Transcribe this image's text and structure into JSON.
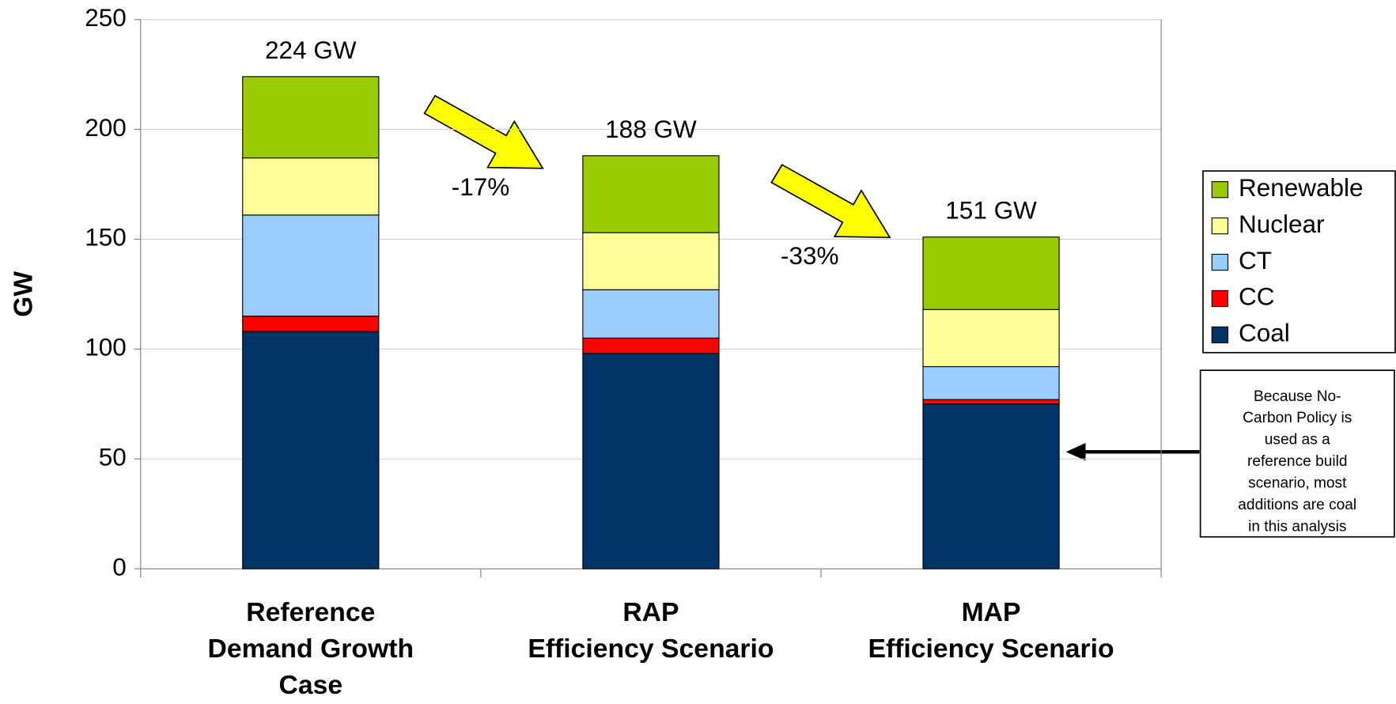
{
  "chart_data": {
    "type": "stacked_bar",
    "ylabel": "GW",
    "categories": [
      [
        "Reference",
        "Demand Growth",
        "Case"
      ],
      [
        "RAP",
        "Efficiency Scenario"
      ],
      [
        "MAP",
        "Efficiency Scenario"
      ]
    ],
    "series": [
      {
        "name": "Coal",
        "color": "#003366",
        "values": [
          108,
          98,
          75
        ]
      },
      {
        "name": "CC",
        "color": "#ff0000",
        "values": [
          7,
          7,
          2
        ]
      },
      {
        "name": "CT",
        "color": "#99ccff",
        "values": [
          46,
          22,
          15
        ]
      },
      {
        "name": "Nuclear",
        "color": "#ffff99",
        "values": [
          26,
          26,
          26
        ]
      },
      {
        "name": "Renewable",
        "color": "#99cc00",
        "values": [
          37,
          35,
          33
        ]
      }
    ],
    "totals": [
      224,
      188,
      151
    ],
    "total_labels": [
      "224 GW",
      "188 GW",
      "151 GW"
    ],
    "changes": [
      "-17%",
      "-33%"
    ],
    "note": [
      "Because No-",
      "Carbon Policy is",
      "used as a",
      "reference build",
      "scenario, most",
      "additions are coal",
      "in this analysis"
    ],
    "ylim": [
      0,
      250
    ],
    "yticks": [
      0,
      50,
      100,
      150,
      200,
      250
    ],
    "grid": true,
    "legend": "right"
  }
}
